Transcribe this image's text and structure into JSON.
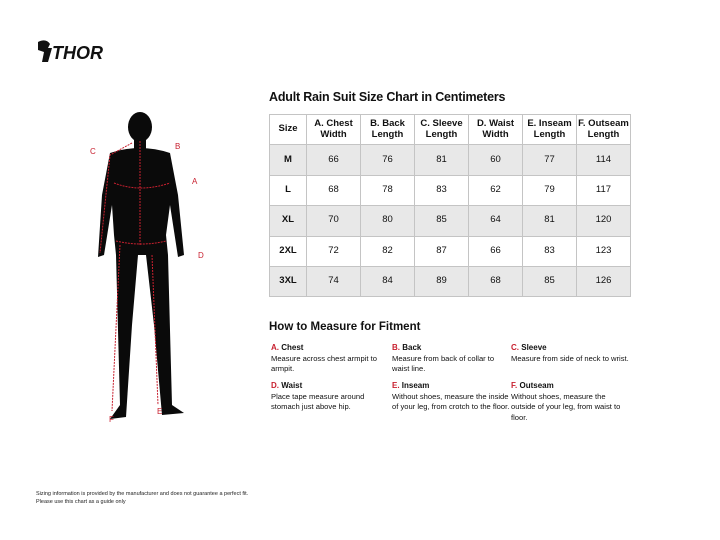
{
  "brand": {
    "logo_text": "THOR"
  },
  "figure_labels": [
    "A",
    "B",
    "C",
    "D",
    "E",
    "F"
  ],
  "title": "Adult Rain Suit Size Chart in Centimeters",
  "table": {
    "headers": [
      "Size",
      "A. Chest Width",
      "B. Back Length",
      "C. Sleeve Length",
      "D. Waist Width",
      "E. Inseam Length",
      "F. Outseam Length"
    ],
    "rows": [
      [
        "M",
        "66",
        "76",
        "81",
        "60",
        "77",
        "114"
      ],
      [
        "L",
        "68",
        "78",
        "83",
        "62",
        "79",
        "117"
      ],
      [
        "XL",
        "70",
        "80",
        "85",
        "64",
        "81",
        "120"
      ],
      [
        "2XL",
        "72",
        "82",
        "87",
        "66",
        "83",
        "123"
      ],
      [
        "3XL",
        "74",
        "84",
        "89",
        "68",
        "85",
        "126"
      ]
    ]
  },
  "howto": {
    "title": "How to Measure for Fitment",
    "items": [
      {
        "letter": "A.",
        "name": "Chest",
        "text": "Measure across chest armpit to armpit."
      },
      {
        "letter": "B.",
        "name": "Back",
        "text": "Measure from back of collar to waist line."
      },
      {
        "letter": "C.",
        "name": "Sleeve",
        "text": "Measure from side of neck to wrist."
      },
      {
        "letter": "D.",
        "name": "Waist",
        "text": "Place tape measure around stomach just above hip."
      },
      {
        "letter": "E.",
        "name": "Inseam",
        "text": "Without shoes, measure the inside of your leg, from crotch to the floor."
      },
      {
        "letter": "F.",
        "name": "Outseam",
        "text": "Without shoes, measure the outside of your leg, from waist to floor."
      }
    ]
  },
  "disclaimer": [
    "Sizing information is provided by the manufacturer and does not guarantee a perfect fit.",
    "Please use this chart as a guide only"
  ],
  "colors": {
    "accent": "#c8202f",
    "row_alt": "#e8e8e8"
  }
}
